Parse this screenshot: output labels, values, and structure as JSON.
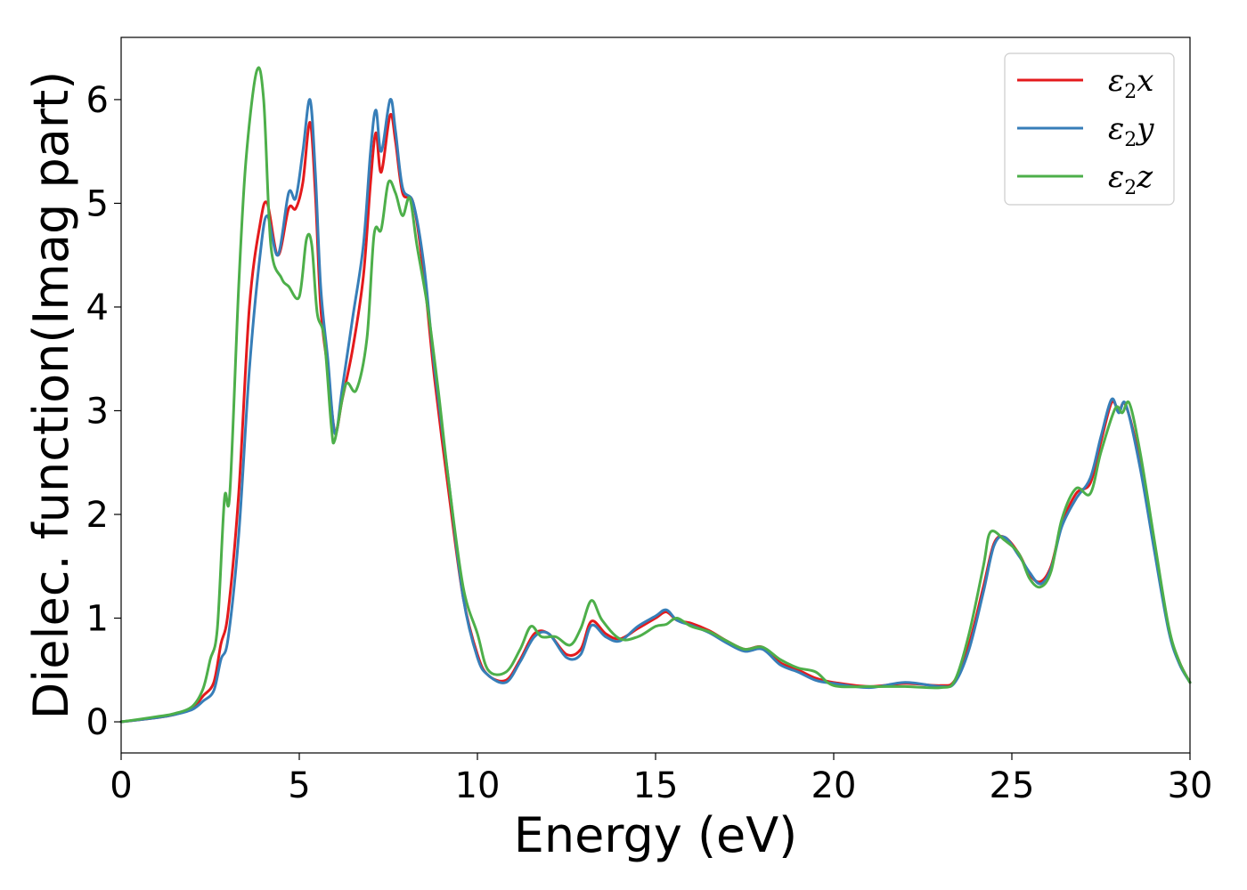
{
  "chart_data": {
    "type": "line",
    "xlabel": "Energy (eV)",
    "ylabel": "Dielec. function(Imag part)",
    "xlim": [
      0,
      30
    ],
    "ylim": [
      -0.3,
      6.6
    ],
    "xticks": [
      0,
      5,
      10,
      15,
      20,
      25,
      30
    ],
    "yticks": [
      0,
      1,
      2,
      3,
      4,
      5,
      6
    ],
    "grid": false,
    "legend_position": "top-right",
    "series": [
      {
        "name": "ε2x",
        "legend_main": "ε",
        "legend_sub": "2",
        "legend_var": "x",
        "color": "#e41a1c",
        "points": [
          [
            0,
            0
          ],
          [
            1,
            0.04
          ],
          [
            1.5,
            0.07
          ],
          [
            2,
            0.13
          ],
          [
            2.3,
            0.25
          ],
          [
            2.6,
            0.38
          ],
          [
            2.8,
            0.75
          ],
          [
            3.0,
            1.05
          ],
          [
            3.3,
            2.2
          ],
          [
            3.6,
            4.0
          ],
          [
            3.9,
            4.8
          ],
          [
            4.1,
            5.0
          ],
          [
            4.4,
            4.5
          ],
          [
            4.7,
            4.95
          ],
          [
            4.9,
            4.95
          ],
          [
            5.1,
            5.2
          ],
          [
            5.3,
            5.78
          ],
          [
            5.45,
            5.1
          ],
          [
            5.6,
            4.0
          ],
          [
            5.8,
            3.4
          ],
          [
            6.0,
            2.8
          ],
          [
            6.2,
            3.1
          ],
          [
            6.5,
            3.6
          ],
          [
            6.8,
            4.3
          ],
          [
            7.0,
            5.2
          ],
          [
            7.15,
            5.68
          ],
          [
            7.3,
            5.3
          ],
          [
            7.55,
            5.85
          ],
          [
            7.7,
            5.6
          ],
          [
            7.9,
            5.1
          ],
          [
            8.2,
            5.0
          ],
          [
            8.5,
            4.3
          ],
          [
            8.8,
            3.3
          ],
          [
            9.2,
            2.2
          ],
          [
            9.6,
            1.2
          ],
          [
            10.0,
            0.65
          ],
          [
            10.3,
            0.45
          ],
          [
            10.8,
            0.4
          ],
          [
            11.2,
            0.6
          ],
          [
            11.6,
            0.85
          ],
          [
            12.0,
            0.85
          ],
          [
            12.5,
            0.65
          ],
          [
            12.9,
            0.7
          ],
          [
            13.2,
            0.97
          ],
          [
            13.6,
            0.85
          ],
          [
            14.0,
            0.8
          ],
          [
            14.5,
            0.9
          ],
          [
            15.0,
            1.0
          ],
          [
            15.3,
            1.06
          ],
          [
            15.6,
            0.98
          ],
          [
            16.0,
            0.95
          ],
          [
            16.5,
            0.88
          ],
          [
            17.0,
            0.78
          ],
          [
            17.5,
            0.7
          ],
          [
            18.0,
            0.72
          ],
          [
            18.5,
            0.57
          ],
          [
            19.0,
            0.5
          ],
          [
            19.5,
            0.42
          ],
          [
            20.0,
            0.38
          ],
          [
            21.0,
            0.34
          ],
          [
            22.0,
            0.37
          ],
          [
            23.0,
            0.35
          ],
          [
            23.4,
            0.4
          ],
          [
            23.8,
            0.75
          ],
          [
            24.2,
            1.3
          ],
          [
            24.5,
            1.72
          ],
          [
            24.8,
            1.78
          ],
          [
            25.2,
            1.62
          ],
          [
            25.5,
            1.42
          ],
          [
            25.8,
            1.35
          ],
          [
            26.1,
            1.5
          ],
          [
            26.4,
            1.9
          ],
          [
            26.8,
            2.2
          ],
          [
            27.2,
            2.3
          ],
          [
            27.5,
            2.7
          ],
          [
            27.8,
            3.08
          ],
          [
            28.0,
            3.0
          ],
          [
            28.2,
            3.05
          ],
          [
            28.6,
            2.5
          ],
          [
            29.0,
            1.7
          ],
          [
            29.4,
            0.9
          ],
          [
            29.7,
            0.58
          ],
          [
            30,
            0.38
          ]
        ]
      },
      {
        "name": "ε2y",
        "legend_main": "ε",
        "legend_sub": "2",
        "legend_var": "y",
        "color": "#377eb8",
        "points": [
          [
            0,
            0
          ],
          [
            1,
            0.04
          ],
          [
            1.5,
            0.07
          ],
          [
            2,
            0.12
          ],
          [
            2.3,
            0.2
          ],
          [
            2.6,
            0.3
          ],
          [
            2.8,
            0.6
          ],
          [
            3.0,
            0.8
          ],
          [
            3.3,
            1.8
          ],
          [
            3.6,
            3.4
          ],
          [
            3.9,
            4.5
          ],
          [
            4.1,
            4.88
          ],
          [
            4.4,
            4.5
          ],
          [
            4.7,
            5.1
          ],
          [
            4.9,
            5.05
          ],
          [
            5.1,
            5.5
          ],
          [
            5.3,
            6.0
          ],
          [
            5.45,
            5.3
          ],
          [
            5.6,
            4.2
          ],
          [
            5.8,
            3.5
          ],
          [
            6.0,
            2.78
          ],
          [
            6.2,
            3.2
          ],
          [
            6.5,
            3.9
          ],
          [
            6.8,
            4.6
          ],
          [
            7.0,
            5.5
          ],
          [
            7.15,
            5.9
          ],
          [
            7.3,
            5.5
          ],
          [
            7.55,
            6.0
          ],
          [
            7.7,
            5.7
          ],
          [
            7.9,
            5.15
          ],
          [
            8.2,
            5.0
          ],
          [
            8.5,
            4.4
          ],
          [
            8.8,
            3.4
          ],
          [
            9.2,
            2.3
          ],
          [
            9.6,
            1.2
          ],
          [
            10.0,
            0.62
          ],
          [
            10.3,
            0.45
          ],
          [
            10.8,
            0.38
          ],
          [
            11.2,
            0.58
          ],
          [
            11.6,
            0.82
          ],
          [
            12.0,
            0.85
          ],
          [
            12.5,
            0.62
          ],
          [
            12.9,
            0.65
          ],
          [
            13.2,
            0.93
          ],
          [
            13.6,
            0.82
          ],
          [
            14.0,
            0.78
          ],
          [
            14.5,
            0.92
          ],
          [
            15.0,
            1.02
          ],
          [
            15.3,
            1.08
          ],
          [
            15.6,
            0.98
          ],
          [
            16.0,
            0.93
          ],
          [
            16.5,
            0.86
          ],
          [
            17.0,
            0.76
          ],
          [
            17.5,
            0.68
          ],
          [
            18.0,
            0.7
          ],
          [
            18.5,
            0.55
          ],
          [
            19.0,
            0.48
          ],
          [
            19.5,
            0.4
          ],
          [
            20.0,
            0.37
          ],
          [
            21.0,
            0.33
          ],
          [
            22.0,
            0.38
          ],
          [
            23.0,
            0.34
          ],
          [
            23.4,
            0.38
          ],
          [
            23.8,
            0.7
          ],
          [
            24.2,
            1.25
          ],
          [
            24.5,
            1.7
          ],
          [
            24.8,
            1.78
          ],
          [
            25.2,
            1.6
          ],
          [
            25.5,
            1.44
          ],
          [
            25.8,
            1.33
          ],
          [
            26.1,
            1.48
          ],
          [
            26.4,
            1.88
          ],
          [
            26.8,
            2.15
          ],
          [
            27.2,
            2.35
          ],
          [
            27.5,
            2.75
          ],
          [
            27.8,
            3.11
          ],
          [
            28.0,
            2.98
          ],
          [
            28.2,
            3.06
          ],
          [
            28.6,
            2.45
          ],
          [
            29.0,
            1.65
          ],
          [
            29.4,
            0.88
          ],
          [
            29.7,
            0.56
          ],
          [
            30,
            0.38
          ]
        ]
      },
      {
        "name": "ε2z",
        "legend_main": "ε",
        "legend_sub": "2",
        "legend_var": "z",
        "color": "#4daf4a",
        "points": [
          [
            0,
            0
          ],
          [
            1,
            0.05
          ],
          [
            1.5,
            0.08
          ],
          [
            2,
            0.15
          ],
          [
            2.3,
            0.32
          ],
          [
            2.5,
            0.6
          ],
          [
            2.7,
            0.9
          ],
          [
            2.9,
            2.15
          ],
          [
            3.05,
            2.2
          ],
          [
            3.3,
            4.2
          ],
          [
            3.5,
            5.4
          ],
          [
            3.8,
            6.27
          ],
          [
            4.0,
            6.0
          ],
          [
            4.2,
            4.6
          ],
          [
            4.5,
            4.28
          ],
          [
            4.7,
            4.2
          ],
          [
            5.0,
            4.1
          ],
          [
            5.2,
            4.65
          ],
          [
            5.35,
            4.6
          ],
          [
            5.5,
            3.95
          ],
          [
            5.7,
            3.7
          ],
          [
            5.9,
            2.85
          ],
          [
            6.0,
            2.72
          ],
          [
            6.3,
            3.25
          ],
          [
            6.6,
            3.2
          ],
          [
            6.9,
            3.7
          ],
          [
            7.1,
            4.7
          ],
          [
            7.3,
            4.75
          ],
          [
            7.5,
            5.2
          ],
          [
            7.7,
            5.1
          ],
          [
            7.9,
            4.88
          ],
          [
            8.1,
            5.05
          ],
          [
            8.3,
            4.6
          ],
          [
            8.6,
            4.0
          ],
          [
            8.9,
            3.2
          ],
          [
            9.2,
            2.3
          ],
          [
            9.6,
            1.3
          ],
          [
            10.0,
            0.85
          ],
          [
            10.3,
            0.5
          ],
          [
            10.8,
            0.48
          ],
          [
            11.2,
            0.7
          ],
          [
            11.5,
            0.92
          ],
          [
            11.8,
            0.82
          ],
          [
            12.2,
            0.82
          ],
          [
            12.6,
            0.74
          ],
          [
            12.9,
            0.9
          ],
          [
            13.2,
            1.17
          ],
          [
            13.5,
            0.98
          ],
          [
            14.0,
            0.8
          ],
          [
            14.5,
            0.82
          ],
          [
            15.0,
            0.92
          ],
          [
            15.3,
            0.94
          ],
          [
            15.6,
            1.0
          ],
          [
            16.0,
            0.92
          ],
          [
            16.5,
            0.87
          ],
          [
            17.0,
            0.78
          ],
          [
            17.5,
            0.7
          ],
          [
            18.0,
            0.72
          ],
          [
            18.5,
            0.6
          ],
          [
            19.0,
            0.52
          ],
          [
            19.5,
            0.48
          ],
          [
            20.0,
            0.35
          ],
          [
            21.0,
            0.34
          ],
          [
            22.0,
            0.34
          ],
          [
            23.0,
            0.33
          ],
          [
            23.4,
            0.4
          ],
          [
            23.8,
            0.85
          ],
          [
            24.2,
            1.5
          ],
          [
            24.4,
            1.83
          ],
          [
            24.8,
            1.75
          ],
          [
            25.2,
            1.62
          ],
          [
            25.5,
            1.38
          ],
          [
            25.8,
            1.3
          ],
          [
            26.1,
            1.45
          ],
          [
            26.4,
            1.95
          ],
          [
            26.8,
            2.25
          ],
          [
            27.2,
            2.2
          ],
          [
            27.5,
            2.6
          ],
          [
            27.9,
            3.02
          ],
          [
            28.1,
            2.98
          ],
          [
            28.3,
            3.07
          ],
          [
            28.6,
            2.6
          ],
          [
            29.0,
            1.75
          ],
          [
            29.4,
            0.92
          ],
          [
            29.7,
            0.58
          ],
          [
            30,
            0.38
          ]
        ]
      }
    ]
  }
}
